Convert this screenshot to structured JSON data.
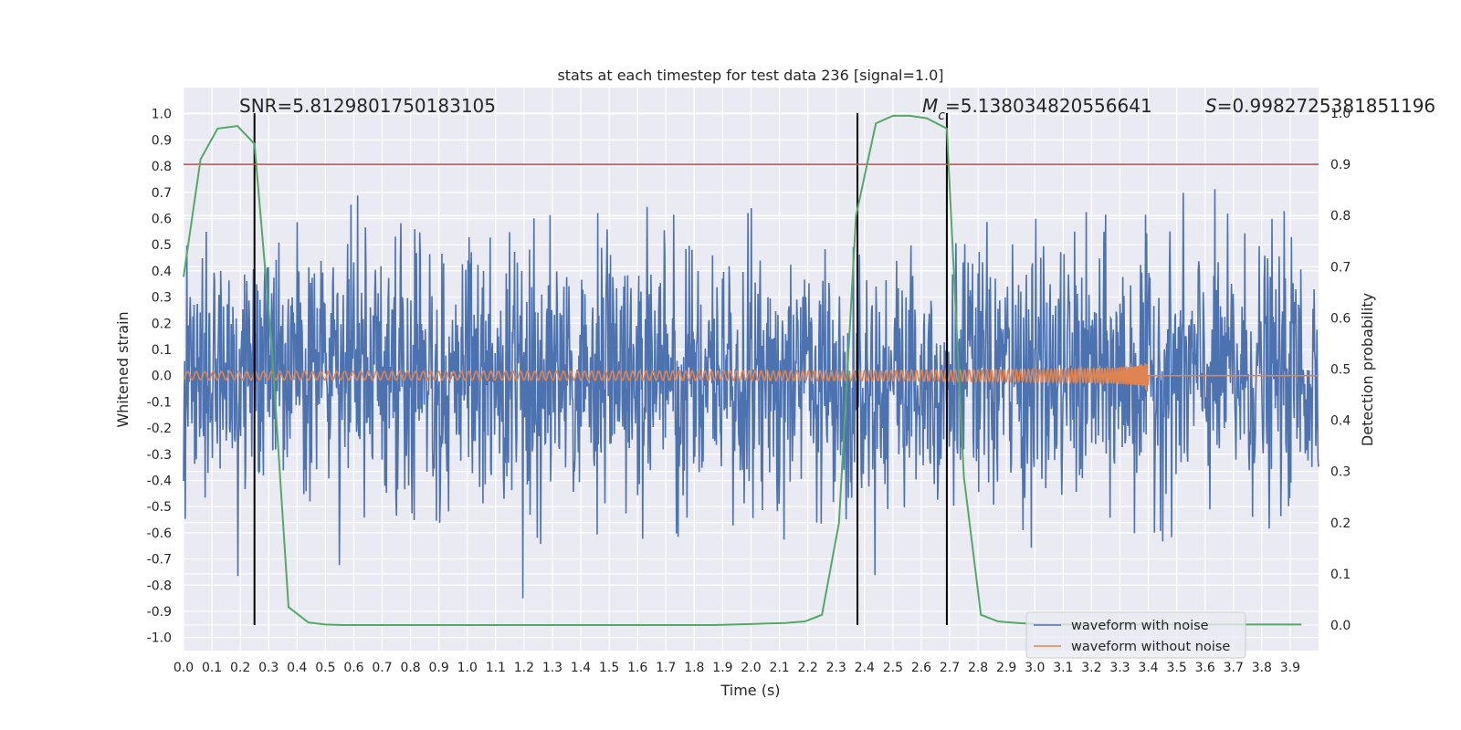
{
  "chart_data": {
    "type": "line",
    "title": "stats at each timestep for test data 236 [signal=1.0]",
    "xlabel": "Time (s)",
    "ylabel": "Whitened strain",
    "y2label": "Detection probability",
    "xlim": [
      0.0,
      4.0
    ],
    "ylim": [
      -1.05,
      1.1
    ],
    "y2lim": [
      -0.05,
      1.05
    ],
    "xticks": [
      "0.0",
      "0.1",
      "0.2",
      "0.3",
      "0.4",
      "0.5",
      "0.6",
      "0.7",
      "0.8",
      "0.9",
      "1.0",
      "1.1",
      "1.2",
      "1.3",
      "1.4",
      "1.5",
      "1.6",
      "1.7",
      "1.8",
      "1.9",
      "2.0",
      "2.1",
      "2.2",
      "2.3",
      "2.4",
      "2.5",
      "2.6",
      "2.7",
      "2.8",
      "2.9",
      "3.0",
      "3.1",
      "3.2",
      "3.3",
      "3.4",
      "3.5",
      "3.6",
      "3.7",
      "3.8",
      "3.9"
    ],
    "yticks": [
      "1.0",
      "0.9",
      "0.8",
      "0.7",
      "0.6",
      "0.5",
      "0.4",
      "0.3",
      "0.2",
      "0.1",
      "0.0",
      "-0.1",
      "-0.2",
      "-0.3",
      "-0.4",
      "-0.5",
      "-0.6",
      "-0.7",
      "-0.8",
      "-0.9",
      "-1.0"
    ],
    "y2ticks": [
      "1.0",
      "0.9",
      "0.8",
      "0.7",
      "0.6",
      "0.5",
      "0.4",
      "0.3",
      "0.2",
      "0.1",
      "0.0"
    ],
    "grid": true,
    "legend_position": "lower-right",
    "series": [
      {
        "name": "waveform with noise",
        "axis": "left",
        "color": "#4c72b0",
        "noise_std": 0.24,
        "points": 2048
      },
      {
        "name": "waveform without noise",
        "axis": "left",
        "color": "#dd8452",
        "amplitude_start": 0.02,
        "amplitude_end": 0.18,
        "t_merger": 3.4
      }
    ],
    "detection_probability": {
      "axis": "right",
      "color": "#55a868",
      "x": [
        0.0,
        0.06,
        0.12,
        0.19,
        0.25,
        0.31,
        0.37,
        0.44,
        0.5,
        0.56,
        0.62,
        0.69,
        0.75,
        0.81,
        0.87,
        0.94,
        1.0,
        1.06,
        1.12,
        1.19,
        1.25,
        1.31,
        1.37,
        1.44,
        1.5,
        1.56,
        1.62,
        1.69,
        1.75,
        1.81,
        1.87,
        1.94,
        2.0,
        2.06,
        2.12,
        2.19,
        2.25,
        2.31,
        2.37,
        2.44,
        2.5,
        2.56,
        2.62,
        2.69,
        2.75,
        2.81,
        2.87,
        2.94,
        3.0,
        3.06,
        3.12,
        3.19,
        3.25,
        3.31,
        3.37,
        3.44,
        3.5,
        3.56,
        3.62,
        3.69,
        3.75,
        3.81,
        3.87,
        3.94
      ],
      "y": [
        0.68,
        0.91,
        0.97,
        0.975,
        0.94,
        0.55,
        0.035,
        0.005,
        0.001,
        0.0,
        0.0,
        0.0,
        0.0,
        0.0,
        0.0,
        0.0,
        0.0,
        0.0,
        0.0,
        0.0,
        0.0,
        0.0,
        0.0,
        0.0,
        0.0,
        0.0,
        0.0,
        0.0,
        0.0,
        0.0,
        0.0,
        0.001,
        0.002,
        0.003,
        0.004,
        0.007,
        0.02,
        0.2,
        0.8,
        0.98,
        0.995,
        0.995,
        0.99,
        0.97,
        0.29,
        0.02,
        0.007,
        0.004,
        0.002,
        0.001,
        0.001,
        0.001,
        0.001,
        0.001,
        0.001,
        0.001,
        0.001,
        0.001,
        0.001,
        0.001,
        0.001,
        0.001,
        0.001,
        0.001
      ]
    },
    "threshold": {
      "axis": "right",
      "value": 0.9,
      "color": "#c44e52"
    },
    "detection_markers": {
      "x": [
        0.25,
        2.375,
        2.69
      ],
      "color": "#000000",
      "y_range": [
        0.0,
        1.0
      ]
    },
    "annotations": [
      {
        "text": "SNR=5.8129801750183105",
        "x": 0.2
      },
      {
        "text_html": "M<sub>c</sub>=5.138034820556641",
        "prefix": "M",
        "sub": "c",
        "value_text": "=5.138034820556641",
        "x": 2.6
      },
      {
        "text_html": "S=0.9982725381851196",
        "prefix": "S",
        "value_text": "=0.9982725381851196",
        "x": 3.62
      }
    ],
    "annotation_y": 1.0
  },
  "style": {
    "axes_bg": "#eaeaf2",
    "grid_color": "#ffffff",
    "text_color": "#262626"
  }
}
